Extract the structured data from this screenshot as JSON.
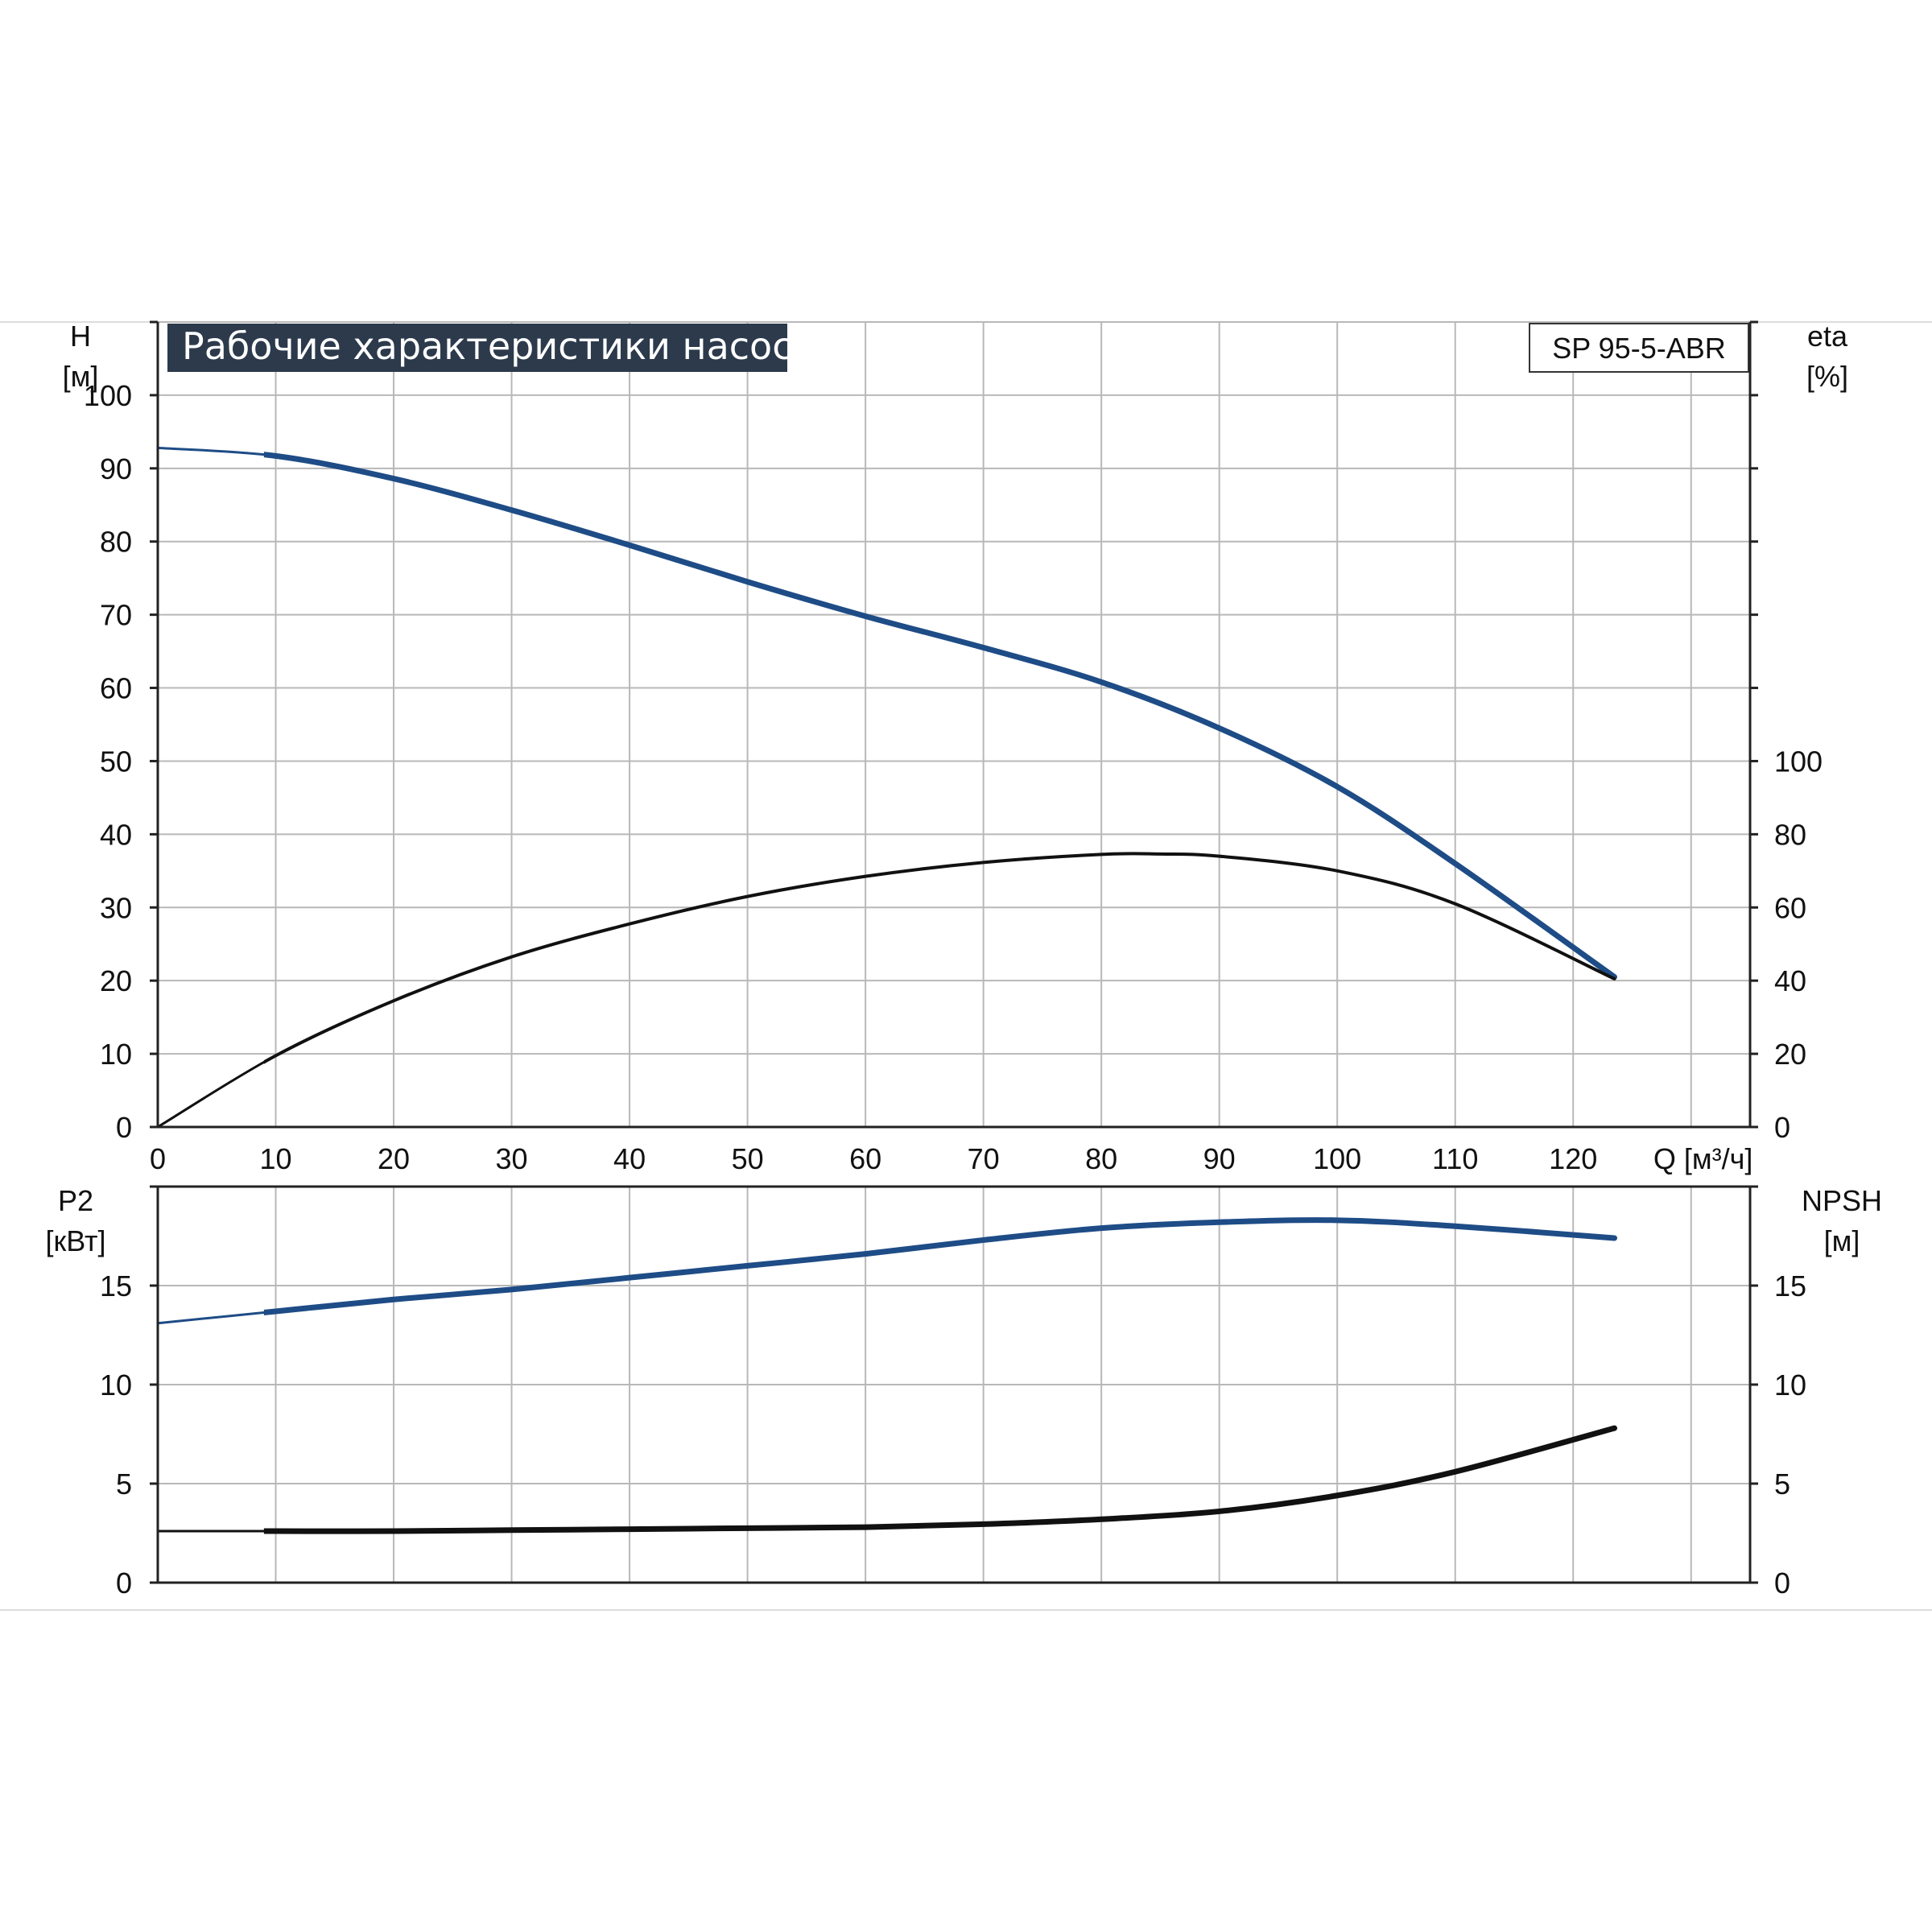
{
  "chart_title": "Рабочие характеристики насоса",
  "model_label": "SP 95-5-ABR",
  "colors": {
    "title_bg": "#2c3a4c",
    "title_fg": "#ffffff",
    "blue": "#1e4c86",
    "black": "#111111",
    "grid": "#b8b8b8",
    "axis": "#222222"
  },
  "chart_data": [
    {
      "type": "line",
      "id": "top",
      "x_ticks": [
        0,
        10,
        20,
        30,
        40,
        50,
        60,
        70,
        80,
        90,
        100,
        110,
        120
      ],
      "x_unit": "Q [м³/ч]",
      "xlim": [
        0,
        135
      ],
      "left_axis": {
        "label": "H",
        "unit": "[м]",
        "ticks": [
          0,
          10,
          20,
          30,
          40,
          50,
          60,
          70,
          80,
          90,
          100
        ],
        "lim": [
          0,
          110
        ]
      },
      "right_axis": {
        "label": "eta",
        "unit": "[%]",
        "ticks": [
          0,
          20,
          40,
          60,
          80,
          100
        ],
        "lim": [
          0,
          220
        ]
      },
      "series": [
        {
          "axis": "left",
          "color": "blue",
          "x": [
            0,
            10,
            20,
            30,
            40,
            50,
            60,
            70,
            80,
            90,
            100,
            110,
            123.5
          ],
          "y": [
            92.8,
            91.7,
            88.6,
            84.3,
            79.5,
            74.5,
            69.8,
            65.5,
            60.8,
            54.5,
            46.5,
            36.0,
            20.5
          ]
        },
        {
          "axis": "right",
          "color": "black",
          "x": [
            0,
            10,
            20,
            30,
            40,
            50,
            60,
            70,
            80,
            85,
            90,
            100,
            110,
            123.5
          ],
          "y": [
            0,
            19.5,
            34.5,
            46.5,
            55.5,
            63.0,
            68.5,
            72.3,
            74.5,
            74.6,
            74.0,
            70.0,
            61.0,
            40.5
          ]
        }
      ]
    },
    {
      "type": "line",
      "id": "bottom",
      "xlim": [
        0,
        135
      ],
      "left_axis": {
        "label": "P2",
        "unit": "[кВт]",
        "ticks": [
          0,
          5,
          10,
          15
        ],
        "lim": [
          0,
          20
        ]
      },
      "right_axis": {
        "label": "NPSH",
        "unit": "[м]",
        "ticks": [
          0,
          5,
          10,
          15
        ],
        "lim": [
          0,
          20
        ]
      },
      "series": [
        {
          "axis": "left",
          "color": "blue",
          "x": [
            0,
            10,
            20,
            30,
            40,
            50,
            60,
            70,
            80,
            90,
            100,
            110,
            123.5
          ],
          "y": [
            13.1,
            13.7,
            14.3,
            14.8,
            15.4,
            16.0,
            16.6,
            17.3,
            17.9,
            18.2,
            18.3,
            18.0,
            17.4
          ]
        },
        {
          "axis": "right",
          "color": "black",
          "x": [
            0,
            10,
            20,
            30,
            40,
            50,
            60,
            70,
            80,
            90,
            100,
            110,
            123.5
          ],
          "y": [
            2.6,
            2.6,
            2.6,
            2.65,
            2.7,
            2.75,
            2.8,
            2.95,
            3.2,
            3.6,
            4.4,
            5.6,
            7.8
          ]
        }
      ]
    }
  ]
}
